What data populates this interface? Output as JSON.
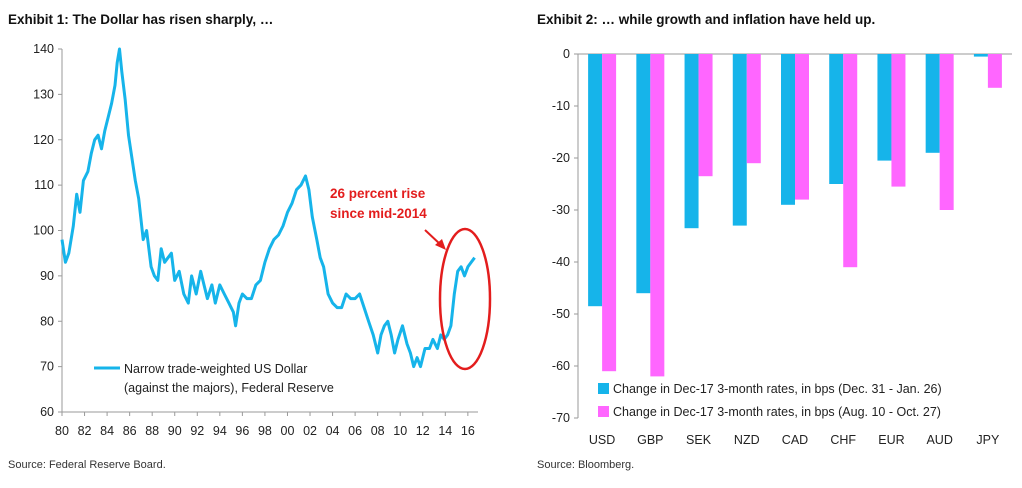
{
  "exhibit1": {
    "title": "Exhibit 1: The Dollar has risen sharply, …",
    "source": "Source: Federal Reserve Board."
  },
  "exhibit2": {
    "title": "Exhibit 2: … while growth and inflation have held up.",
    "source": "Source: Bloomberg."
  },
  "colors": {
    "cyan": "#16b4ea",
    "magenta": "#ff66ff",
    "annotation_red": "#e31d1d",
    "axis": "#9a9a9a"
  },
  "chart_data": [
    {
      "type": "line",
      "title": "",
      "xlabel": "",
      "ylabel": "",
      "ylim": [
        60,
        140
      ],
      "xlim": [
        80,
        16.9
      ],
      "x_tick_labels": [
        "80",
        "82",
        "84",
        "86",
        "88",
        "90",
        "92",
        "94",
        "96",
        "98",
        "00",
        "02",
        "04",
        "06",
        "08",
        "10",
        "12",
        "14",
        "16"
      ],
      "y_tick_labels": [
        "60",
        "70",
        "80",
        "90",
        "100",
        "110",
        "120",
        "130",
        "140"
      ],
      "legend_position": "bottom-left",
      "series": [
        {
          "name": "Narrow trade-weighted US Dollar",
          "name_line2": "(against the majors), Federal Reserve",
          "color": "#16b4ea",
          "x": [
            1980.0,
            1980.3,
            1980.6,
            1981.0,
            1981.3,
            1981.6,
            1981.9,
            1982.3,
            1982.6,
            1982.9,
            1983.2,
            1983.5,
            1983.8,
            1984.1,
            1984.4,
            1984.7,
            1984.9,
            1985.1,
            1985.3,
            1985.6,
            1985.9,
            1986.2,
            1986.5,
            1986.8,
            1987.2,
            1987.5,
            1987.9,
            1988.2,
            1988.5,
            1988.8,
            1989.1,
            1989.4,
            1989.7,
            1990.0,
            1990.4,
            1990.8,
            1991.2,
            1991.5,
            1991.9,
            1992.3,
            1992.6,
            1992.9,
            1993.3,
            1993.6,
            1994.0,
            1994.4,
            1994.8,
            1995.2,
            1995.4,
            1995.7,
            1996.0,
            1996.4,
            1996.8,
            1997.2,
            1997.6,
            1998.0,
            1998.4,
            1998.8,
            1999.2,
            1999.6,
            2000.0,
            2000.4,
            2000.8,
            2001.2,
            2001.6,
            2001.9,
            2002.2,
            2002.6,
            2002.9,
            2003.2,
            2003.6,
            2004.0,
            2004.4,
            2004.8,
            2005.2,
            2005.6,
            2006.0,
            2006.4,
            2006.8,
            2007.2,
            2007.6,
            2008.0,
            2008.3,
            2008.6,
            2008.9,
            2009.2,
            2009.5,
            2009.8,
            2010.2,
            2010.6,
            2010.9,
            2011.2,
            2011.5,
            2011.8,
            2012.2,
            2012.6,
            2012.9,
            2013.3,
            2013.6,
            2013.9,
            2014.2,
            2014.5,
            2014.8,
            2015.1,
            2015.4,
            2015.7,
            2016.0,
            2016.3,
            2016.6
          ],
          "values": [
            98,
            93,
            95,
            101,
            108,
            104,
            111,
            113,
            117,
            120,
            121,
            118,
            122,
            125,
            128,
            132,
            137,
            140,
            135,
            129,
            121,
            116,
            111,
            107,
            98,
            100,
            92,
            90,
            89,
            96,
            93,
            94,
            95,
            89,
            91,
            86,
            84,
            90,
            86,
            91,
            88,
            85,
            88,
            84,
            88,
            86,
            84,
            82,
            79,
            84,
            86,
            85,
            85,
            88,
            89,
            93,
            96,
            98,
            99,
            101,
            104,
            106,
            109,
            110,
            112,
            109,
            103,
            98,
            94,
            92,
            86,
            84,
            83,
            83,
            86,
            85,
            85,
            86,
            83,
            80,
            77,
            73,
            77,
            79,
            80,
            77,
            73,
            76,
            79,
            75,
            73,
            70,
            72,
            70,
            74,
            74,
            76,
            74,
            77,
            76,
            77,
            79,
            86,
            91,
            92,
            90,
            92,
            93,
            94
          ]
        }
      ],
      "annotations": [
        "26 percent rise",
        "since mid-2014"
      ]
    },
    {
      "type": "bar",
      "title": "",
      "xlabel": "",
      "ylabel": "",
      "ylim": [
        -70,
        0
      ],
      "categories": [
        "USD",
        "GBP",
        "SEK",
        "NZD",
        "CAD",
        "CHF",
        "EUR",
        "AUD",
        "JPY"
      ],
      "y_tick_labels": [
        "0",
        "-10",
        "-20",
        "-30",
        "-40",
        "-50",
        "-60",
        "-70"
      ],
      "legend_position": "bottom-left",
      "series": [
        {
          "name": "Change in Dec-17 3-month rates, in bps (Dec. 31 - Jan. 26)",
          "color": "#16b4ea",
          "values": [
            -48.5,
            -46,
            -33.5,
            -33,
            -29,
            -25,
            -20.5,
            -19,
            -0.5
          ]
        },
        {
          "name": "Change in Dec-17 3-month rates, in bps (Aug. 10 - Oct. 27)",
          "color": "#ff66ff",
          "values": [
            -61,
            -62,
            -23.5,
            -21,
            -28,
            -41,
            -25.5,
            -30,
            -6.5
          ]
        }
      ]
    }
  ]
}
